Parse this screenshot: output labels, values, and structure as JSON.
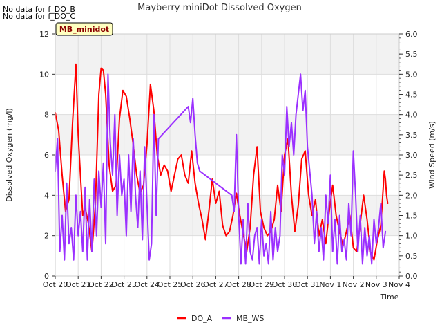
{
  "notices": [
    "No data for f_DO_B",
    "No data for f_DO_C"
  ],
  "chart_data": {
    "type": "line",
    "title": "Mayberry miniDot Dissolved Oxygen",
    "site_label": "MB_minidot",
    "xlabel": "Time",
    "ylabel_left": "Dissolved Oxygen (mg/l)",
    "ylabel_right": "Wind Speed (m/s)",
    "x_ticks": [
      "Oct 20",
      "Oct 21",
      "Oct 22",
      "Oct 23",
      "Oct 24",
      "Oct 25",
      "Oct 26",
      "Oct 27",
      "Oct 28",
      "Oct 29",
      "Oct 30",
      "Oct 31",
      "Nov 1",
      "Nov 2",
      "Nov 3",
      "Nov 4"
    ],
    "xlim": [
      0,
      15
    ],
    "ylim_left": [
      0,
      12
    ],
    "ylim_right": [
      0,
      6
    ],
    "yticks_left": [
      "0",
      "2",
      "4",
      "6",
      "8",
      "10",
      "12"
    ],
    "yticks_right": [
      "0.0",
      "0.5",
      "1.0",
      "1.5",
      "2.0",
      "2.5",
      "3.0",
      "3.5",
      "4.0",
      "4.5",
      "5.0",
      "5.5",
      "6.0"
    ],
    "grid": true,
    "legend_position": "bottom-center",
    "series": [
      {
        "name": "DO_A",
        "axis": "left",
        "color": "#ff0000",
        "x": [
          0.0,
          0.15,
          0.3,
          0.45,
          0.6,
          0.75,
          0.9,
          1.0,
          1.1,
          1.2,
          1.3,
          1.45,
          1.6,
          1.75,
          1.9,
          2.0,
          2.1,
          2.2,
          2.35,
          2.5,
          2.65,
          2.8,
          2.95,
          3.1,
          3.25,
          3.4,
          3.55,
          3.7,
          3.85,
          4.0,
          4.15,
          4.3,
          4.45,
          4.6,
          4.75,
          4.9,
          5.05,
          5.2,
          5.35,
          5.5,
          5.65,
          5.8,
          5.95,
          6.1,
          6.25,
          6.4,
          6.55,
          6.7,
          6.85,
          7.0,
          7.15,
          7.3,
          7.45,
          7.6,
          7.75,
          7.9,
          8.05,
          8.2,
          8.35,
          8.5,
          8.65,
          8.8,
          8.95,
          9.1,
          9.25,
          9.4,
          9.55,
          9.7,
          9.85,
          10.0,
          10.15,
          10.3,
          10.45,
          10.6,
          10.75,
          10.9,
          11.05,
          11.2,
          11.35,
          11.5,
          11.65,
          11.8,
          11.95,
          12.1,
          12.25,
          12.4,
          12.55,
          12.7,
          12.85,
          13.0,
          13.15,
          13.3,
          13.45,
          13.6,
          13.75,
          13.9,
          14.05,
          14.2,
          14.35
        ],
        "values": [
          8.1,
          7.2,
          5.0,
          3.2,
          3.8,
          7.5,
          10.5,
          7.0,
          5.0,
          3.0,
          3.4,
          2.6,
          1.2,
          3.5,
          9.0,
          10.3,
          10.2,
          9.0,
          5.5,
          4.2,
          4.5,
          7.8,
          9.2,
          8.9,
          7.8,
          6.5,
          5.0,
          4.1,
          4.5,
          6.5,
          9.5,
          8.2,
          6.0,
          5.0,
          5.5,
          5.2,
          4.2,
          5.0,
          5.8,
          6.0,
          5.0,
          4.6,
          6.2,
          4.6,
          3.6,
          2.8,
          1.8,
          3.2,
          4.8,
          3.6,
          4.2,
          2.5,
          2.0,
          2.2,
          3.0,
          4.1,
          3.0,
          2.1,
          1.2,
          2.4,
          5.0,
          6.4,
          3.2,
          2.4,
          2.0,
          2.2,
          2.8,
          4.5,
          3.2,
          6.0,
          6.8,
          4.0,
          2.2,
          3.5,
          5.8,
          6.2,
          4.0,
          3.0,
          3.8,
          2.0,
          2.8,
          1.6,
          3.2,
          4.5,
          3.0,
          2.2,
          1.5,
          2.2,
          3.0,
          1.4,
          1.2,
          2.6,
          4.0,
          2.8,
          1.2,
          0.8,
          1.8,
          2.5,
          5.2
        ],
        "x_tail": [
          14.4,
          14.45,
          14.5
        ],
        "values_tail": [
          4.8,
          4.0,
          3.6
        ]
      },
      {
        "name": "MB_WS",
        "axis": "right",
        "color": "#9b30ff",
        "x": [
          0.0,
          0.1,
          0.2,
          0.3,
          0.4,
          0.5,
          0.6,
          0.7,
          0.8,
          0.9,
          1.0,
          1.1,
          1.2,
          1.3,
          1.4,
          1.5,
          1.6,
          1.7,
          1.8,
          1.9,
          2.0,
          2.1,
          2.2,
          2.3,
          2.4,
          2.5,
          2.6,
          2.7,
          2.8,
          2.9,
          3.0,
          3.1,
          3.2,
          3.3,
          3.4,
          3.5,
          3.6,
          3.7,
          3.8,
          3.9,
          4.0,
          4.1,
          4.2,
          4.3,
          4.4,
          4.5,
          5.8,
          5.9,
          6.0,
          6.1,
          6.2,
          6.3,
          7.7,
          7.8,
          7.9,
          8.0,
          8.1,
          8.2,
          8.3,
          8.4,
          8.5,
          8.6,
          8.7,
          8.8,
          8.9,
          9.0,
          9.1,
          9.2,
          9.3,
          9.4,
          9.5,
          9.6,
          9.7,
          9.8,
          9.9,
          10.0,
          10.1,
          10.2,
          10.3,
          10.4,
          10.5,
          10.6,
          10.7,
          10.8,
          10.9,
          11.0,
          11.1,
          11.2,
          11.3,
          11.4,
          11.5,
          11.6,
          11.7,
          11.8,
          11.9,
          12.0,
          12.1,
          12.2,
          12.3,
          12.4,
          12.5,
          12.6,
          12.7,
          12.8,
          12.9,
          13.0,
          13.1,
          13.2,
          13.3,
          13.4,
          13.5,
          13.6,
          13.7,
          13.8,
          13.9,
          14.0,
          14.1,
          14.2,
          14.3,
          14.4
        ],
        "values": [
          2.6,
          3.4,
          0.6,
          1.5,
          0.4,
          2.3,
          0.8,
          1.2,
          0.4,
          2.0,
          1.0,
          1.6,
          0.6,
          2.2,
          0.4,
          1.9,
          0.6,
          2.4,
          1.0,
          2.6,
          1.7,
          2.8,
          0.8,
          5.0,
          3.3,
          2.5,
          4.0,
          1.5,
          3.0,
          2.0,
          2.4,
          1.0,
          3.0,
          1.6,
          3.4,
          2.0,
          1.2,
          2.6,
          0.9,
          3.2,
          1.8,
          0.4,
          0.8,
          4.0,
          1.5,
          3.4,
          4.2,
          3.8,
          4.4,
          3.5,
          2.8,
          2.6,
          2.0,
          1.6,
          3.5,
          1.5,
          0.3,
          1.4,
          0.3,
          1.8,
          0.6,
          0.4,
          1.0,
          1.2,
          0.3,
          1.4,
          0.5,
          0.8,
          0.3,
          1.6,
          0.4,
          1.2,
          0.6,
          1.0,
          3.0,
          2.5,
          4.2,
          3.2,
          3.8,
          3.0,
          4.0,
          4.5,
          5.0,
          4.1,
          4.6,
          3.2,
          2.6,
          2.0,
          0.8,
          1.6,
          0.6,
          1.2,
          0.4,
          2.0,
          1.3,
          2.5,
          0.6,
          1.4,
          0.3,
          1.5,
          0.6,
          0.9,
          0.4,
          1.8,
          1.0,
          3.1,
          2.0,
          0.6,
          1.5,
          0.3,
          1.2,
          0.5,
          1.0,
          0.3,
          1.4,
          0.8,
          1.2,
          1.8,
          0.7,
          1.1
        ]
      }
    ]
  }
}
